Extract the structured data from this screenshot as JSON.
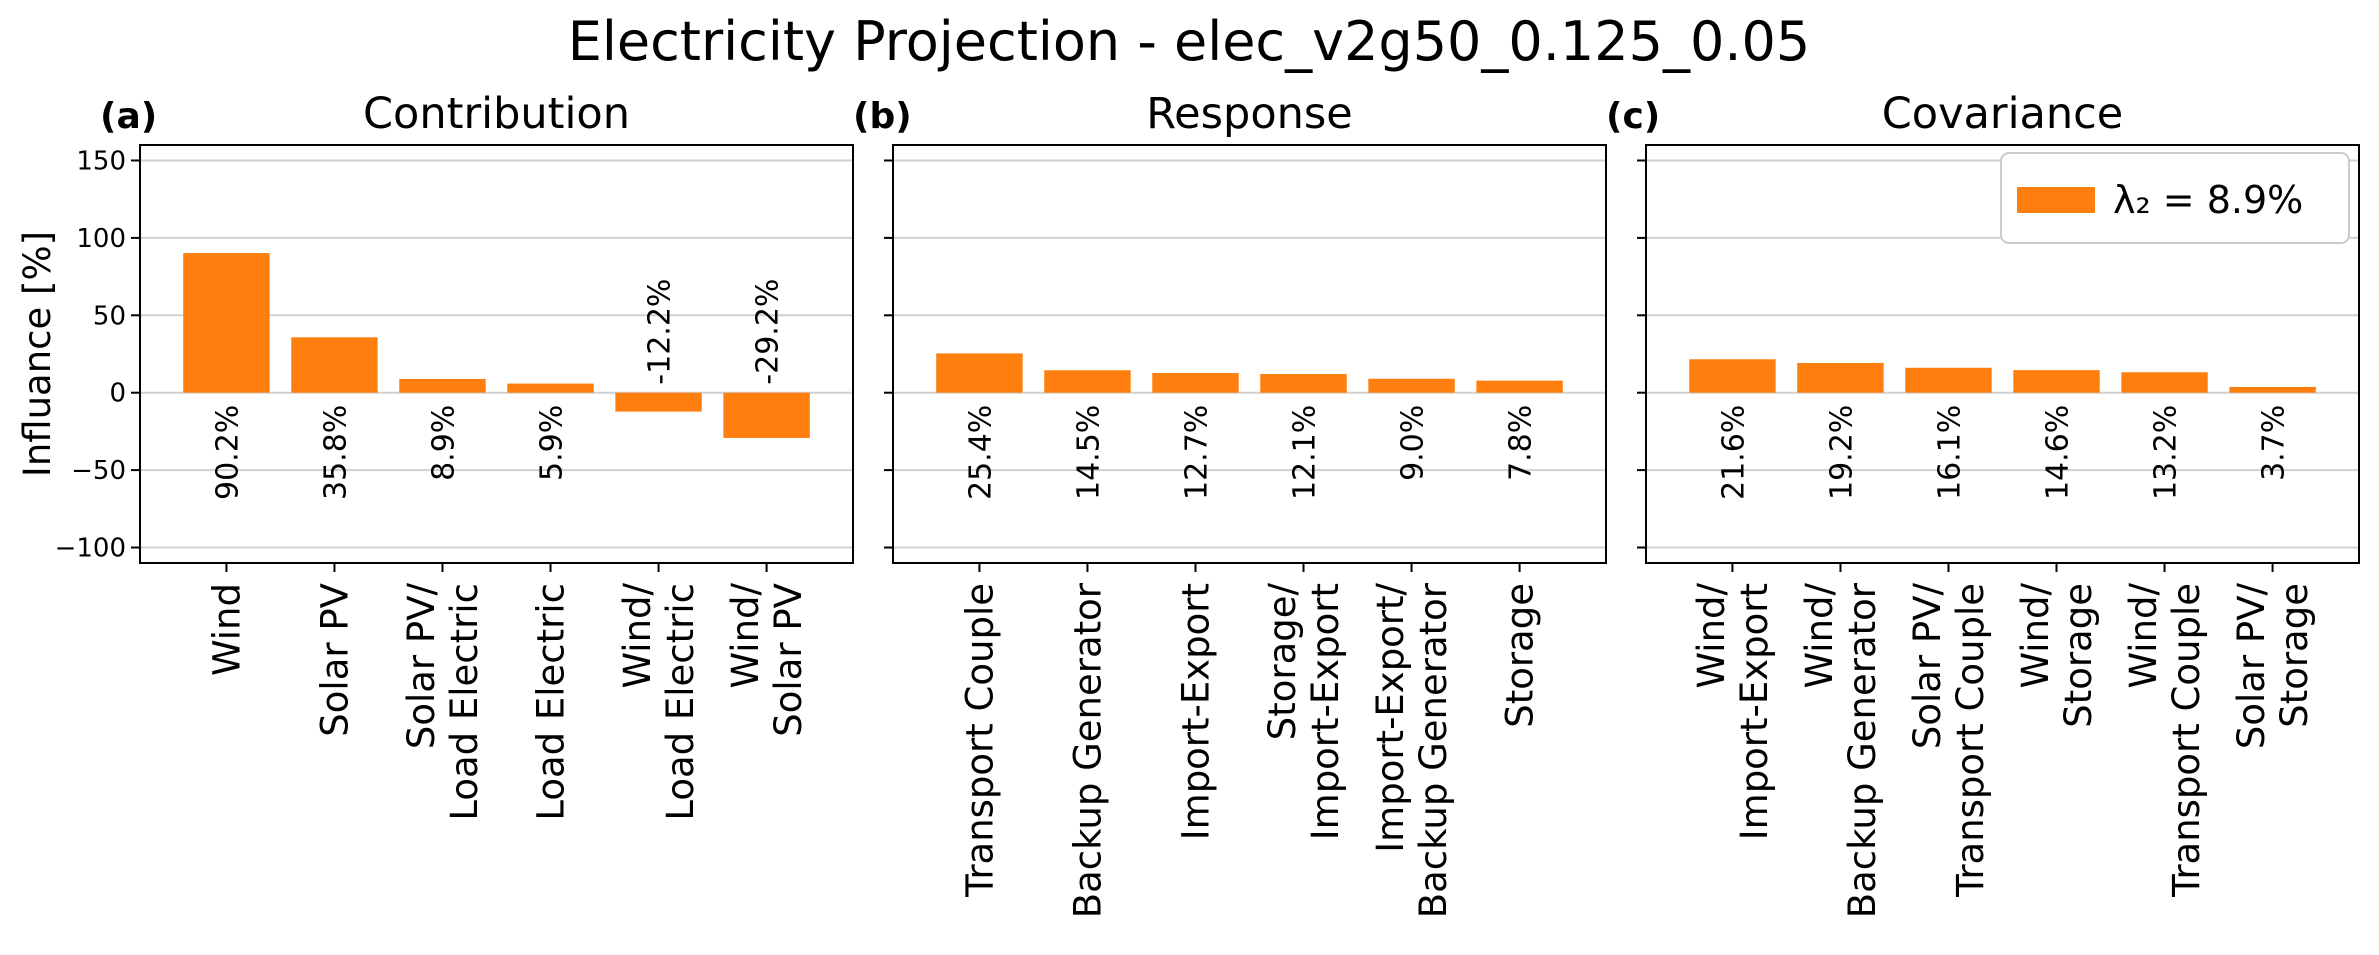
{
  "figure": {
    "title": "Electricity Projection - elec_v2g50_0.125_0.05",
    "ylabel": "Influance [%]",
    "legend_label": "λ₂ = 8.9%",
    "bar_color": "#ff7f0e"
  },
  "chart_data": [
    {
      "type": "bar",
      "panel_label": "(a)",
      "title": "Contribution",
      "categories": [
        "Wind",
        "Solar PV",
        "Solar PV/\nLoad Electric",
        "Load Electric",
        "Wind/\nLoad Electric",
        "Wind/\nSolar PV"
      ],
      "values": [
        90.2,
        35.8,
        8.9,
        5.9,
        -12.2,
        -29.2
      ],
      "value_labels": [
        "90.2%",
        "35.8%",
        "8.9%",
        "5.9%",
        "-12.2%",
        "-29.2%"
      ],
      "ylabel": "Influance [%]",
      "ylim": [
        -110,
        160
      ],
      "yticks": [
        150,
        100,
        50,
        0,
        -50,
        -100
      ],
      "ytick_labels": [
        "150",
        "100",
        "50",
        "0",
        "−50",
        "−100"
      ],
      "grid": "horizontal"
    },
    {
      "type": "bar",
      "panel_label": "(b)",
      "title": "Response",
      "categories": [
        "Transport Couple",
        "Backup Generator",
        "Import-Export",
        "Storage/\nImport-Export",
        "Import-Export/\nBackup Generator",
        "Storage"
      ],
      "values": [
        25.4,
        14.5,
        12.7,
        12.1,
        9.0,
        7.8
      ],
      "value_labels": [
        "25.4%",
        "14.5%",
        "12.7%",
        "12.1%",
        "9.0%",
        "7.8%"
      ],
      "ylim": [
        -110,
        160
      ],
      "grid": "horizontal"
    },
    {
      "type": "bar",
      "panel_label": "(c)",
      "title": "Covariance",
      "categories": [
        "Wind/\nImport-Export",
        "Wind/\nBackup Generator",
        "Solar PV/\nTransport Couple",
        "Wind/\nStorage",
        "Wind/\nTransport Couple",
        "Solar PV/\nStorage"
      ],
      "values": [
        21.6,
        19.2,
        16.1,
        14.6,
        13.2,
        3.7
      ],
      "value_labels": [
        "21.6%",
        "19.2%",
        "16.1%",
        "14.6%",
        "13.2%",
        "3.7%"
      ],
      "ylim": [
        -110,
        160
      ],
      "grid": "horizontal",
      "legend": "top-right"
    }
  ]
}
